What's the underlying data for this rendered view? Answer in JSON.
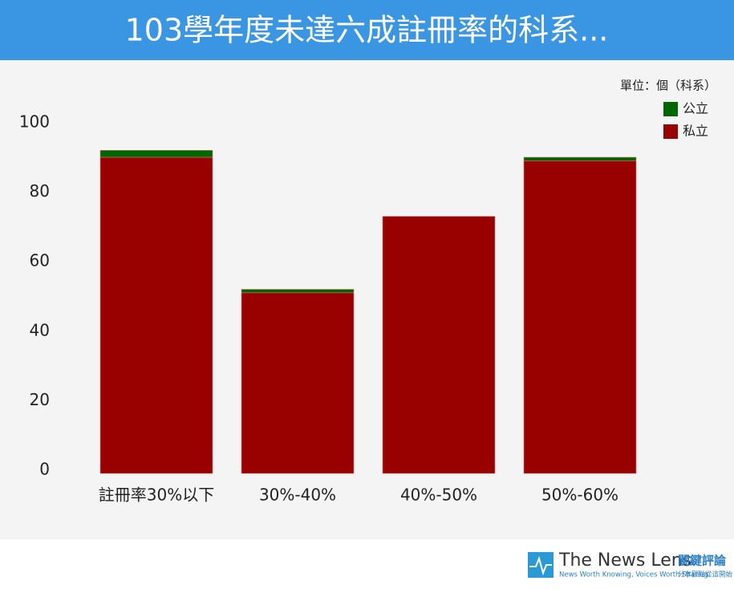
{
  "chart_data": {
    "type": "stacked_bar",
    "title": "103學年度未達六成註冊率的科系...",
    "unit_note": "單位：個（科系）",
    "categories": [
      "註冊率30%以下",
      "30%-40%",
      "40%-50%",
      "50%-60%"
    ],
    "series": [
      {
        "name": "私立",
        "color": "#990000",
        "values": [
          91,
          52,
          74,
          90
        ]
      },
      {
        "name": "公立",
        "color": "#006600",
        "values": [
          2,
          1,
          0,
          1
        ]
      }
    ],
    "ylim": [
      0,
      100
    ],
    "yticks": [
      0,
      20,
      40,
      60,
      80,
      100
    ],
    "grid": false
  },
  "footer": {
    "brand": "The News Lens",
    "brand_cn": "關鍵評論",
    "tagline": "News Worth Knowing, Voices Worth Sharing",
    "tagline_cn": "分享觀點從這開始"
  }
}
